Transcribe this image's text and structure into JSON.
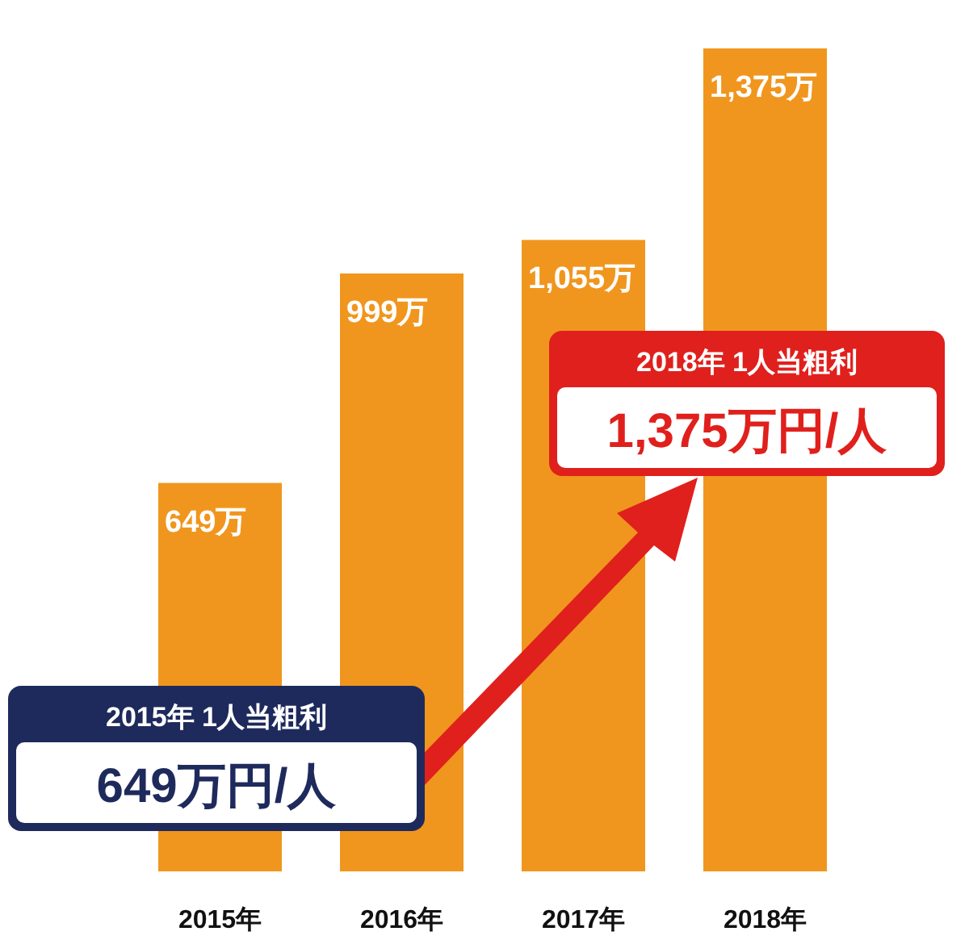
{
  "chart_data": {
    "type": "bar",
    "categories": [
      "2015年",
      "2016年",
      "2017年",
      "2018年"
    ],
    "values": [
      649,
      999,
      1055,
      1375
    ],
    "value_labels": [
      "649万",
      "999万",
      "1,055万",
      "1,375万"
    ],
    "color": "#f0961e",
    "annotations": [
      "2015年 1人当粗利",
      "649万円/人",
      "2018年 1人当粗利",
      "1,375万円/人"
    ]
  }
}
